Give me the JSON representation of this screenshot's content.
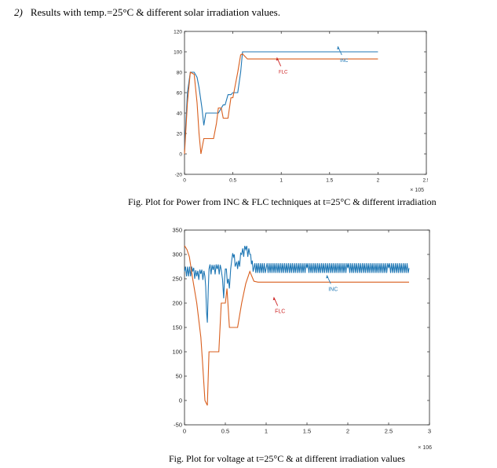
{
  "heading": {
    "number": "2)",
    "text": "Results with temp.=25°C & different solar irradiation values."
  },
  "captions": {
    "fig1": "Fig. Plot for Power from INC & FLC techniques at t=25°C & different irradiation",
    "fig2": "Fig. Plot for voltage at t=25°C & at different irradiation values"
  },
  "chart_data": [
    {
      "type": "line",
      "xlim": [
        0,
        2.5
      ],
      "ylim": [
        -20,
        120
      ],
      "xticks": [
        0,
        0.5,
        1,
        1.5,
        2,
        2.5
      ],
      "xtick_labels": [
        "0",
        "0.5",
        "1",
        "1.5",
        "2",
        "2.5"
      ],
      "yticks": [
        -20,
        0,
        20,
        40,
        60,
        80,
        100,
        120
      ],
      "ytick_labels": [
        "-20",
        "0",
        "20",
        "40",
        "60",
        "80",
        "100",
        "120"
      ],
      "x_multiplier": "× 10^5",
      "grid": false,
      "series": [
        {
          "name": "INC",
          "color": "#1f77b4",
          "noise": 0,
          "x": [
            0,
            0.03,
            0.06,
            0.08,
            0.1,
            0.13,
            0.15,
            0.18,
            0.2,
            0.22,
            0.25,
            0.3,
            0.35,
            0.4,
            0.42,
            0.45,
            0.48,
            0.5,
            0.55,
            0.58,
            0.6,
            0.63,
            0.65,
            0.7,
            0.8,
            1.0,
            1.5,
            2.0
          ],
          "y": [
            5,
            60,
            80,
            80,
            80,
            75,
            65,
            45,
            28,
            40,
            40,
            40,
            40,
            48,
            48,
            58,
            58,
            60,
            60,
            80,
            100,
            100,
            100,
            100,
            100,
            100,
            100,
            100
          ]
        },
        {
          "name": "FLC",
          "color": "#d95f1e",
          "noise": 0,
          "x": [
            0,
            0.03,
            0.06,
            0.1,
            0.13,
            0.15,
            0.17,
            0.2,
            0.22,
            0.25,
            0.3,
            0.33,
            0.35,
            0.38,
            0.4,
            0.42,
            0.45,
            0.48,
            0.5,
            0.55,
            0.58,
            0.6,
            0.65,
            0.7,
            1.0,
            1.5,
            2.0
          ],
          "y": [
            0,
            50,
            80,
            78,
            50,
            20,
            0,
            15,
            15,
            15,
            15,
            30,
            45,
            45,
            35,
            35,
            35,
            55,
            55,
            80,
            97,
            98,
            93,
            93,
            93,
            93,
            93
          ]
        }
      ],
      "annotations": [
        {
          "text": "INC",
          "color": "#1f77b4",
          "x": 1.65,
          "y": 90
        },
        {
          "text": "FLC",
          "color": "#cc2222",
          "x": 1.02,
          "y": 79
        }
      ]
    },
    {
      "type": "line",
      "xlim": [
        0,
        3
      ],
      "ylim": [
        -50,
        350
      ],
      "xticks": [
        0,
        0.5,
        1,
        1.5,
        2,
        2.5,
        3
      ],
      "xtick_labels": [
        "0",
        "0.5",
        "1",
        "1.5",
        "2",
        "2.5",
        "3"
      ],
      "yticks": [
        -50,
        0,
        50,
        100,
        150,
        200,
        250,
        300,
        350
      ],
      "ytick_labels": [
        "-50",
        "0",
        "50",
        "100",
        "150",
        "200",
        "250",
        "300",
        "350"
      ],
      "x_multiplier": "× 10^6",
      "grid": false,
      "series": [
        {
          "name": "INC",
          "color": "#1f77b4",
          "noise": 10,
          "x": [
            0,
            0.1,
            0.15,
            0.2,
            0.25,
            0.28,
            0.3,
            0.35,
            0.4,
            0.45,
            0.48,
            0.5,
            0.55,
            0.58,
            0.6,
            0.63,
            0.65,
            0.7,
            0.75,
            0.8,
            0.82,
            0.85,
            1.0,
            1.5,
            2.0,
            2.5,
            2.75
          ],
          "y": [
            265,
            265,
            255,
            260,
            255,
            160,
            270,
            268,
            270,
            268,
            210,
            270,
            230,
            290,
            295,
            280,
            270,
            300,
            310,
            300,
            280,
            272,
            272,
            272,
            272,
            272,
            272
          ]
        },
        {
          "name": "FLC",
          "color": "#d95f1e",
          "noise": 0,
          "x": [
            0,
            0.03,
            0.06,
            0.1,
            0.15,
            0.2,
            0.22,
            0.25,
            0.28,
            0.3,
            0.35,
            0.4,
            0.42,
            0.45,
            0.5,
            0.52,
            0.55,
            0.58,
            0.6,
            0.65,
            0.7,
            0.75,
            0.8,
            0.85,
            0.9,
            1.0,
            1.5,
            2.0,
            2.5,
            2.75
          ],
          "y": [
            318,
            310,
            295,
            250,
            200,
            130,
            80,
            0,
            -10,
            100,
            100,
            100,
            100,
            200,
            200,
            230,
            150,
            150,
            150,
            150,
            200,
            240,
            265,
            245,
            243,
            243,
            243,
            243,
            243,
            243
          ]
        }
      ],
      "annotations": [
        {
          "text": "INC",
          "color": "#1f77b4",
          "x": 1.82,
          "y": 225
        },
        {
          "text": "FLC",
          "color": "#cc2222",
          "x": 1.17,
          "y": 180
        }
      ]
    }
  ]
}
